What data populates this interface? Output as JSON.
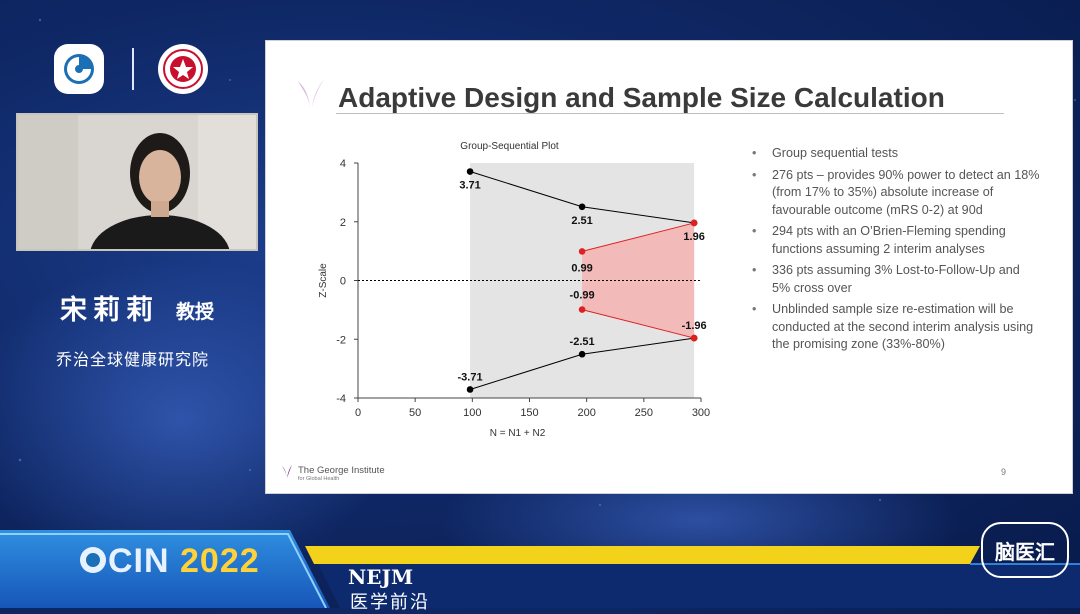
{
  "speaker": {
    "name": "宋莉莉",
    "title": "教授",
    "organization": "乔治全球健康研究院"
  },
  "slide": {
    "title": "Adaptive Design and Sample Size Calculation",
    "bullets": [
      "Group sequential tests",
      "276 pts – provides 90% power to detect an 18% (from 17% to 35%) absolute increase of favourable  outcome (mRS 0-2) at 90d",
      "294 pts with an O’Brien-Fleming spending functions assuming 2 interim analyses",
      "336 pts assuming 3% Lost-to-Follow-Up and 5% cross over",
      "Unblinded sample size re-estimation will be conducted at the second interim analysis using the promising zone (33%-80%)"
    ],
    "footer_org": "The George Institute",
    "footer_org_sub": "for Global Health",
    "page_number": "9"
  },
  "chart_data": {
    "type": "line",
    "title": "Group-Sequential Plot",
    "xlabel": "N = N1 + N2",
    "ylabel": "Z-Scale",
    "xlim": [
      0,
      300
    ],
    "ylim": [
      -4,
      4
    ],
    "x_ticks": [
      0,
      50,
      100,
      150,
      200,
      250,
      300
    ],
    "y_ticks": [
      -4,
      -2,
      0,
      2,
      4
    ],
    "shaded_region_x": [
      98,
      294
    ],
    "series": [
      {
        "color": "#000000",
        "points": [
          [
            98,
            3.71
          ],
          [
            196,
            2.51
          ],
          [
            294,
            1.96
          ]
        ],
        "labels": [
          "3.71",
          "2.51",
          "1.96"
        ]
      },
      {
        "color": "#000000",
        "points": [
          [
            98,
            -3.71
          ],
          [
            196,
            -2.51
          ],
          [
            294,
            -1.96
          ]
        ],
        "labels": [
          "-3.71",
          "-2.51",
          "-1.96"
        ]
      },
      {
        "color": "#e02020",
        "points": [
          [
            196,
            0.99
          ],
          [
            294,
            1.96
          ]
        ],
        "labels": [
          "0.99",
          ""
        ]
      },
      {
        "color": "#e02020",
        "points": [
          [
            196,
            -0.99
          ],
          [
            294,
            -1.96
          ]
        ],
        "labels": [
          "-0.99",
          ""
        ]
      }
    ],
    "reference_line_y": 0,
    "grid": false
  },
  "banner": {
    "event_prefix": "CIN",
    "event_year": "2022",
    "journal": "NEJM",
    "journal_cn": "医学前沿",
    "brand": "脑医汇"
  },
  "colors": {
    "background": "#0f2866",
    "accent_yellow": "#ffd23a",
    "accent_cyan": "#2fb3e8"
  }
}
